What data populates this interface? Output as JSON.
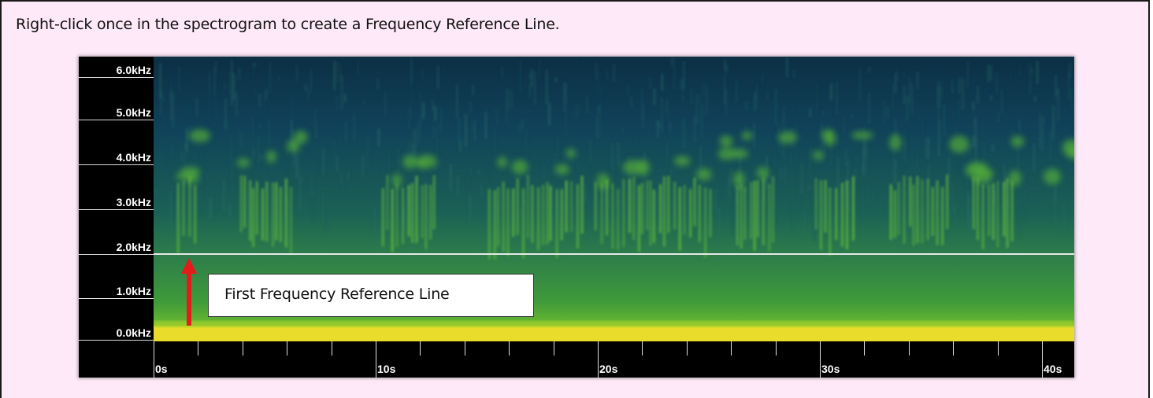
{
  "instruction": "Right-click once in the spectrogram to create a Frequency Reference Line.",
  "spectrogram": {
    "frequency_labels": [
      "6.0kHz",
      "5.0kHz",
      "4.0kHz",
      "3.0kHz",
      "2.0kHz",
      "1.0kHz",
      "0.0kHz"
    ],
    "time_labels": [
      "0s",
      "10s",
      "20s",
      "30s",
      "40s"
    ],
    "reference_line_frequency": "2.0kHz"
  },
  "callout": {
    "text": "First Frequency Reference Line"
  },
  "colors": {
    "panel_background": "#fde9f7",
    "spectrogram_dark": "#0e3a4a",
    "spectrogram_green": "#5cc13a",
    "spectrogram_yellow": "#f2e531",
    "arrow": "#e41b1b",
    "reference_line": "#e8e8e8"
  }
}
